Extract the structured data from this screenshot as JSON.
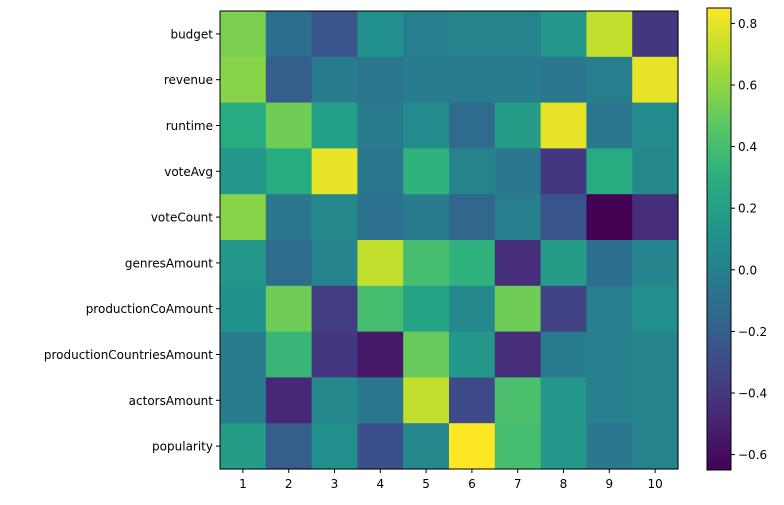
{
  "chart_data": {
    "type": "heatmap",
    "title": "",
    "xlabel": "",
    "ylabel": "",
    "x_categories": [
      "1",
      "2",
      "3",
      "4",
      "5",
      "6",
      "7",
      "8",
      "9",
      "10"
    ],
    "y_categories": [
      "budget",
      "revenue",
      "runtime",
      "voteAvg",
      "voteCount",
      "genresAmount",
      "productionCoAmount",
      "productionCountriesAmount",
      "actorsAmount",
      "popularity"
    ],
    "values": [
      [
        0.55,
        -0.1,
        -0.25,
        0.1,
        0.0,
        0.02,
        0.02,
        0.15,
        0.72,
        -0.4
      ],
      [
        0.58,
        -0.2,
        -0.03,
        -0.05,
        -0.02,
        -0.02,
        -0.03,
        -0.05,
        0.0,
        0.8
      ],
      [
        0.28,
        0.52,
        0.2,
        -0.02,
        0.07,
        -0.12,
        0.18,
        0.8,
        -0.05,
        0.07
      ],
      [
        0.15,
        0.28,
        0.8,
        -0.05,
        0.32,
        0.02,
        -0.05,
        -0.4,
        0.28,
        0.05
      ],
      [
        0.58,
        -0.05,
        0.05,
        -0.08,
        -0.02,
        -0.15,
        0.0,
        -0.25,
        -0.65,
        -0.45
      ],
      [
        0.15,
        -0.12,
        0.03,
        0.72,
        0.4,
        0.32,
        -0.45,
        0.18,
        -0.1,
        0.03
      ],
      [
        0.12,
        0.52,
        -0.38,
        0.4,
        0.22,
        0.05,
        0.52,
        -0.35,
        0.0,
        0.1
      ],
      [
        -0.02,
        0.35,
        -0.4,
        -0.55,
        0.5,
        0.15,
        -0.45,
        -0.02,
        0.0,
        0.02
      ],
      [
        -0.02,
        -0.48,
        0.05,
        -0.05,
        0.72,
        -0.3,
        0.42,
        0.15,
        0.0,
        0.02
      ],
      [
        0.18,
        -0.2,
        0.1,
        -0.28,
        0.05,
        0.85,
        0.4,
        0.15,
        -0.05,
        0.02
      ]
    ],
    "colormap": "viridis",
    "vmin": -0.65,
    "vmax": 0.85,
    "colorbar_ticks": [
      "−0.6",
      "−0.4",
      "−0.2",
      "0.0",
      "0.2",
      "0.4",
      "0.6",
      "0.8"
    ],
    "colorbar_tick_values": [
      -0.6,
      -0.4,
      -0.2,
      0.0,
      0.2,
      0.4,
      0.6,
      0.8
    ],
    "grid": false,
    "colorbar_placement": "right"
  }
}
